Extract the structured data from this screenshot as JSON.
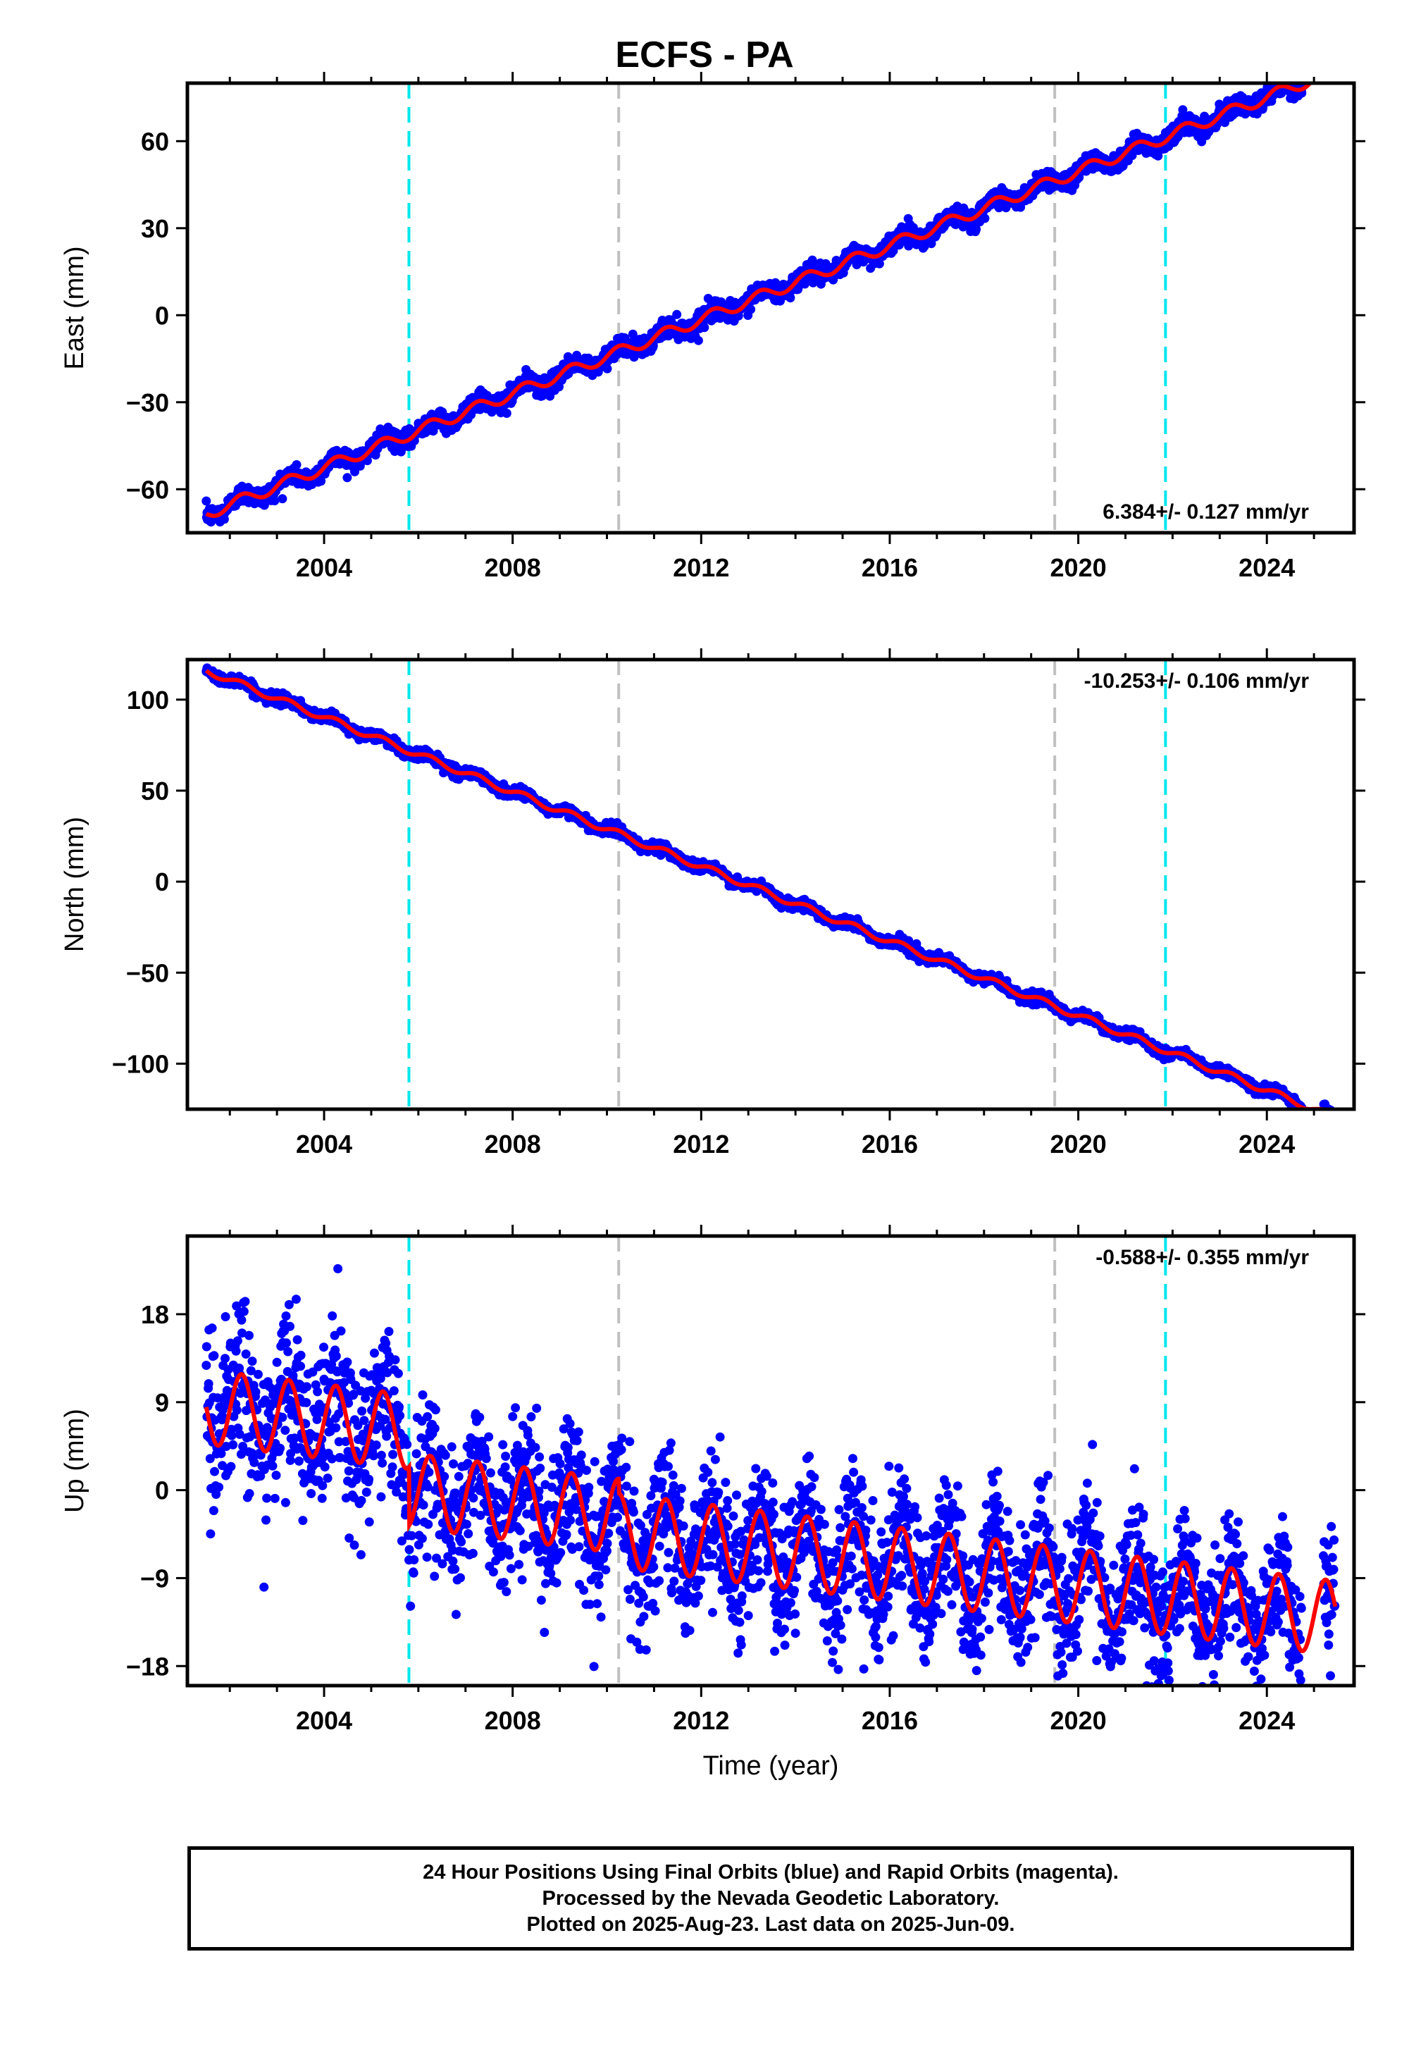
{
  "title": "ECFS - PA",
  "xlabel": "Time (year)",
  "footer": {
    "line1": "24 Hour Positions Using Final Orbits (blue) and Rapid Orbits (magenta).",
    "line2": "Processed by the Nevada Geodetic Laboratory.",
    "line3": "Plotted on 2025-Aug-23. Last data on 2025-Jun-09."
  },
  "colors": {
    "data_points": "#0000ff",
    "model_fit": "#ff0000",
    "equipment_change": "#00e5ee",
    "other_event": "#c0c0c0"
  },
  "events": [
    {
      "year": 2005.8,
      "color": "#00e5ee"
    },
    {
      "year": 2010.25,
      "color": "#c0c0c0"
    },
    {
      "year": 2019.5,
      "color": "#c0c0c0"
    },
    {
      "year": 2021.85,
      "color": "#00e5ee"
    }
  ],
  "chart_data": [
    {
      "type": "scatter",
      "component": "east",
      "ylabel": "East (mm)",
      "rate_text": "6.384+/- 0.127 mm/yr",
      "rate_position": "bottom-right",
      "xlim": [
        2001.1,
        2025.85
      ],
      "ylim": [
        -75,
        80
      ],
      "xticks": [
        2004,
        2008,
        2012,
        2016,
        2020,
        2024
      ],
      "yticks": [
        -60,
        -30,
        0,
        30,
        60
      ],
      "fit": {
        "t0": 2001.5,
        "y0": -68.5,
        "rate": 6.384,
        "annual_amp": 2.0
      },
      "noise": 1.6,
      "data_range": [
        2001.5,
        2025.45
      ],
      "model_range": [
        2001.5,
        2025.45
      ]
    },
    {
      "type": "scatter",
      "component": "north",
      "ylabel": "North (mm)",
      "rate_text": "-10.253+/- 0.106 mm/yr",
      "rate_position": "top-right",
      "xlim": [
        2001.1,
        2025.85
      ],
      "ylim": [
        -125,
        122
      ],
      "xticks": [
        2004,
        2008,
        2012,
        2016,
        2020,
        2024
      ],
      "yticks": [
        -100,
        -50,
        0,
        50,
        100
      ],
      "fit": {
        "t0": 2001.5,
        "y0": 116,
        "rate": -10.253,
        "annual_amp": 1.8
      },
      "noise": 1.4,
      "data_range": [
        2001.5,
        2025.45
      ],
      "model_range": [
        2001.5,
        2025.45
      ]
    },
    {
      "type": "scatter",
      "component": "up",
      "ylabel": "Up (mm)",
      "rate_text": "-0.588+/- 0.355 mm/yr",
      "rate_position": "top-right",
      "xlim": [
        2001.1,
        2025.85
      ],
      "ylim": [
        -20,
        26
      ],
      "xticks": [
        2004,
        2008,
        2012,
        2016,
        2020,
        2024
      ],
      "yticks": [
        -18,
        -9,
        0,
        9,
        18
      ],
      "fit": {
        "t0": 2001.5,
        "y0": 8.5,
        "rate": -0.588,
        "annual_amp": 3.8,
        "offsets": [
          {
            "year": 2005.8,
            "value": -6
          },
          {
            "year": 2010.25,
            "value": -1.5
          }
        ]
      },
      "noise": 3.4,
      "data_range": [
        2001.5,
        2025.45
      ],
      "model_range": [
        2001.5,
        2025.45
      ]
    }
  ]
}
